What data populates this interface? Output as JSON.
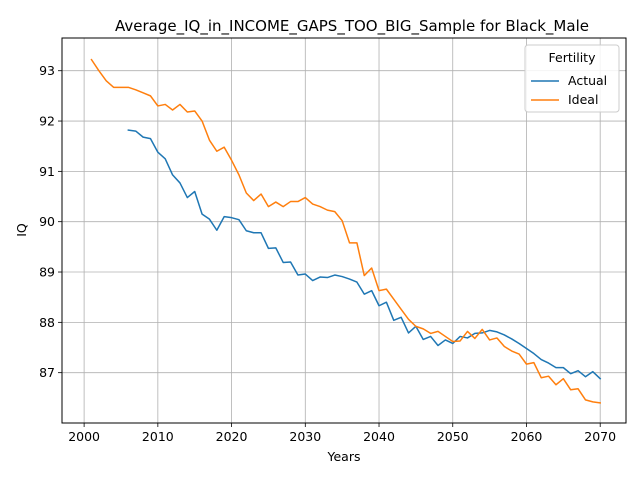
{
  "chart_data": {
    "type": "line",
    "title": "Average_IQ_in_INCOME_GAPS_TOO_BIG_Sample for Black_Male",
    "xlabel": "Years",
    "ylabel": "IQ",
    "xlim": [
      1997,
      2073.5
    ],
    "ylim": [
      86.0,
      93.65
    ],
    "xticks": [
      2000,
      2010,
      2020,
      2030,
      2040,
      2050,
      2060,
      2070
    ],
    "yticks": [
      87,
      88,
      89,
      90,
      91,
      92,
      93
    ],
    "grid": true,
    "legend": {
      "title": "Fertility",
      "position": "top-right"
    },
    "series": [
      {
        "name": "Actual",
        "color": "#1f77b4",
        "x": [
          2006,
          2007,
          2008,
          2009,
          2010,
          2011,
          2012,
          2013,
          2014,
          2015,
          2016,
          2017,
          2018,
          2019,
          2020,
          2021,
          2022,
          2023,
          2024,
          2025,
          2026,
          2027,
          2028,
          2029,
          2030,
          2031,
          2032,
          2033,
          2034,
          2035,
          2036,
          2037,
          2038,
          2039,
          2040,
          2041,
          2042,
          2043,
          2044,
          2045,
          2046,
          2047,
          2048,
          2049,
          2050,
          2051,
          2052,
          2053,
          2054,
          2055,
          2056,
          2057,
          2058,
          2059,
          2060,
          2061,
          2062,
          2063,
          2064,
          2065,
          2066,
          2067,
          2068,
          2069,
          2070
        ],
        "y": [
          91.82,
          91.8,
          91.68,
          91.65,
          91.38,
          91.25,
          90.93,
          90.77,
          90.48,
          90.6,
          90.15,
          90.05,
          89.83,
          90.1,
          90.08,
          90.04,
          89.82,
          89.78,
          89.78,
          89.47,
          89.48,
          89.19,
          89.2,
          88.94,
          88.96,
          88.83,
          88.9,
          88.89,
          88.94,
          88.91,
          88.86,
          88.8,
          88.56,
          88.63,
          88.33,
          88.4,
          88.04,
          88.1,
          87.79,
          87.92,
          87.66,
          87.72,
          87.54,
          87.65,
          87.58,
          87.72,
          87.69,
          87.78,
          87.79,
          87.84,
          87.81,
          87.75,
          87.67,
          87.58,
          87.48,
          87.38,
          87.26,
          87.19,
          87.1,
          87.1,
          86.98,
          87.04,
          86.92,
          87.02,
          86.88
        ]
      },
      {
        "name": "Ideal",
        "color": "#ff7f0e",
        "x": [
          2001,
          2002,
          2003,
          2004,
          2005,
          2006,
          2007,
          2008,
          2009,
          2010,
          2011,
          2012,
          2013,
          2014,
          2015,
          2016,
          2017,
          2018,
          2019,
          2020,
          2021,
          2022,
          2023,
          2024,
          2025,
          2026,
          2027,
          2028,
          2029,
          2030,
          2031,
          2032,
          2033,
          2034,
          2035,
          2036,
          2037,
          2038,
          2039,
          2040,
          2041,
          2042,
          2043,
          2044,
          2045,
          2046,
          2047,
          2048,
          2049,
          2050,
          2051,
          2052,
          2053,
          2054,
          2055,
          2056,
          2057,
          2058,
          2059,
          2060,
          2061,
          2062,
          2063,
          2064,
          2065,
          2066,
          2067,
          2068,
          2069,
          2070
        ],
        "y": [
          93.22,
          93.0,
          92.8,
          92.67,
          92.67,
          92.67,
          92.62,
          92.56,
          92.5,
          92.3,
          92.33,
          92.22,
          92.33,
          92.18,
          92.2,
          92.0,
          91.62,
          91.4,
          91.48,
          91.22,
          90.93,
          90.57,
          90.42,
          90.55,
          90.3,
          90.39,
          90.3,
          90.4,
          90.4,
          90.48,
          90.35,
          90.3,
          90.23,
          90.2,
          90.02,
          89.58,
          89.58,
          88.93,
          89.08,
          88.63,
          88.66,
          88.46,
          88.26,
          88.06,
          87.92,
          87.87,
          87.78,
          87.82,
          87.72,
          87.62,
          87.63,
          87.82,
          87.68,
          87.86,
          87.65,
          87.69,
          87.52,
          87.43,
          87.37,
          87.17,
          87.2,
          86.9,
          86.93,
          86.76,
          86.88,
          86.66,
          86.68,
          86.46,
          86.42,
          86.4
        ]
      }
    ]
  }
}
